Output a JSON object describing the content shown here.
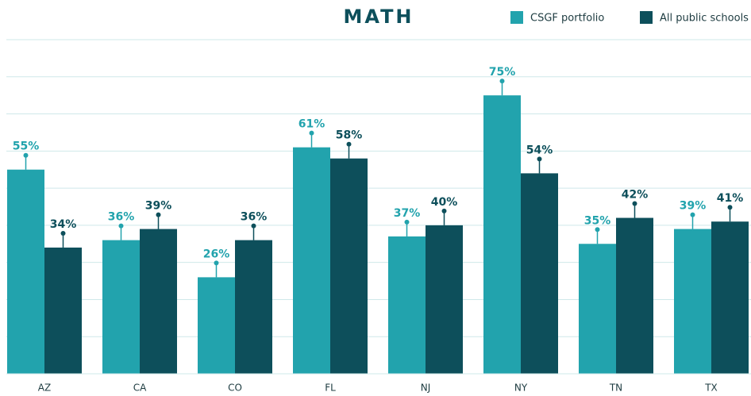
{
  "chart_data": {
    "type": "bar",
    "title": "MATH",
    "categories": [
      "AZ",
      "CA",
      "CO",
      "FL",
      "NJ",
      "NY",
      "TN",
      "TX"
    ],
    "series": [
      {
        "name": "CSGF portfolio",
        "color": "#22a3ad",
        "values": [
          55,
          36,
          26,
          61,
          37,
          75,
          35,
          39
        ],
        "value_labels": [
          "55%",
          "36%",
          "26%",
          "61%",
          "37%",
          "75%",
          "35%",
          "39%"
        ]
      },
      {
        "name": "All public schools",
        "color": "#0d4f5b",
        "values": [
          34,
          39,
          36,
          58,
          40,
          54,
          42,
          41
        ],
        "value_labels": [
          "34%",
          "39%",
          "36%",
          "58%",
          "40%",
          "54%",
          "42%",
          "41%"
        ]
      }
    ],
    "ylim": [
      0,
      90
    ],
    "yticks": [
      0,
      10,
      20,
      30,
      40,
      50,
      60,
      70,
      80,
      90
    ],
    "grid": true,
    "legend": "top-right"
  }
}
